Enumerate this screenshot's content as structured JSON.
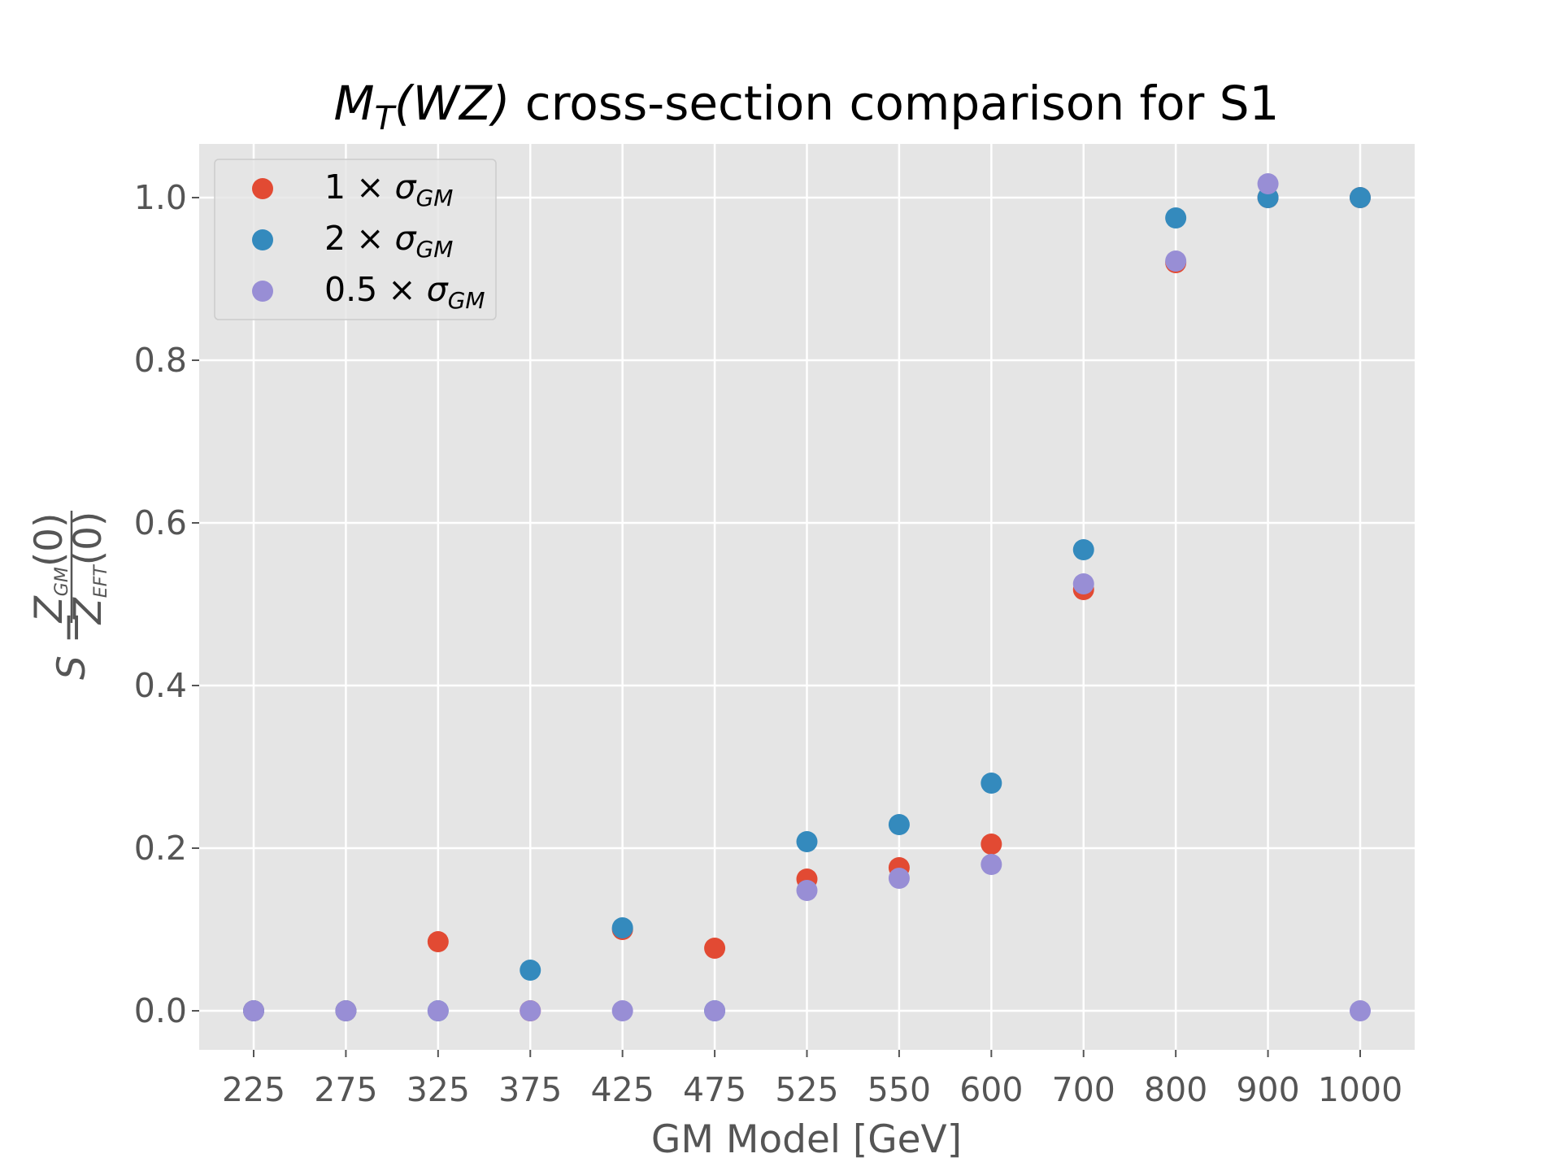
{
  "chart_data": {
    "type": "scatter",
    "title": "M_T(WZ) cross-section comparison for S1",
    "title_parts": {
      "main": "M",
      "sub": "T",
      "rest_italic": "(WZ)",
      "rest": " cross-section comparison for S1"
    },
    "xlabel": "GM Model [GeV]",
    "ylabel": "S = Z_GM(0) / Z_EFT(0)",
    "ylabel_parts": {
      "lhs": "S =",
      "num": "Z",
      "num_sub": "GM",
      "num_tail": "(0)",
      "den": "Z",
      "den_sub": "EFT",
      "den_tail": "(0)"
    },
    "categories": [
      "225",
      "275",
      "325",
      "375",
      "425",
      "475",
      "525",
      "550",
      "600",
      "700",
      "800",
      "900",
      "1000"
    ],
    "ylim": [
      -0.048,
      1.066
    ],
    "yticks": [
      "0.0",
      "0.2",
      "0.4",
      "0.6",
      "0.8",
      "1.0"
    ],
    "grid": true,
    "legend_position": "upper left",
    "series": [
      {
        "name": "1 × σ_GM",
        "label_num": "1",
        "label_sub": "GM",
        "color": "#E24A33",
        "values": [
          0.0,
          0.0,
          0.085,
          0.0,
          0.1,
          0.077,
          0.162,
          0.176,
          0.205,
          0.518,
          0.92,
          1.0,
          1.0
        ]
      },
      {
        "name": "2 × σ_GM",
        "label_num": "2",
        "label_sub": "GM",
        "color": "#348ABD",
        "values": [
          0.0,
          0.0,
          0.0,
          0.05,
          0.102,
          0.0,
          0.208,
          0.229,
          0.28,
          0.567,
          0.975,
          1.0,
          1.0
        ]
      },
      {
        "name": "0.5 × σ_GM",
        "label_num": "0.5",
        "label_sub": "GM",
        "color": "#988ED5",
        "values": [
          0.0,
          0.0,
          0.0,
          0.0,
          0.0,
          0.0,
          0.148,
          0.163,
          0.18,
          0.525,
          0.922,
          1.017,
          0.0
        ]
      }
    ]
  }
}
